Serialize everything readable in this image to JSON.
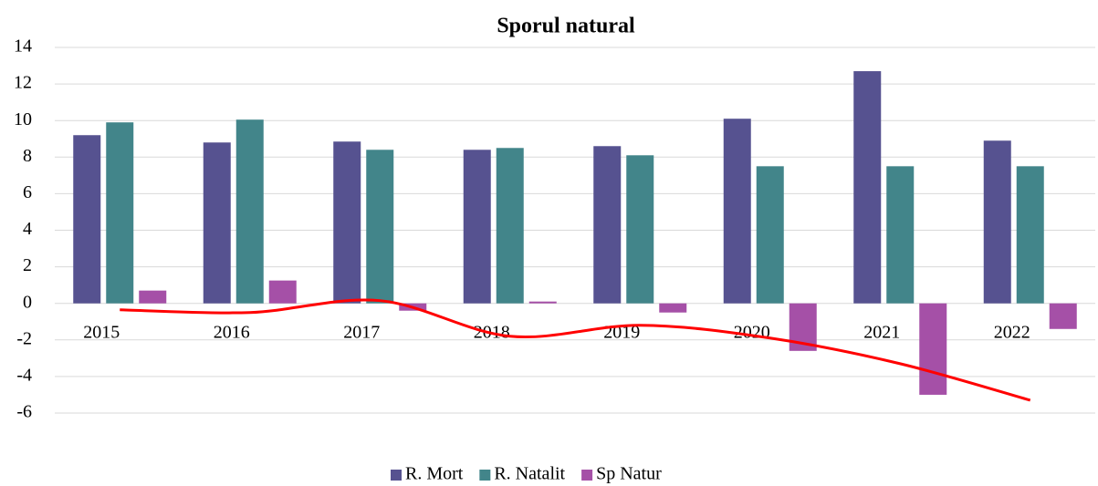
{
  "chart_data": {
    "type": "bar",
    "title": "Sporul natural",
    "categories": [
      "2015",
      "2016",
      "2017",
      "2018",
      "2019",
      "2020",
      "2021",
      "2022"
    ],
    "series": [
      {
        "name": "R. Mort",
        "color": "#565290",
        "values": [
          9.2,
          8.8,
          8.85,
          8.4,
          8.6,
          10.1,
          12.7,
          8.9
        ]
      },
      {
        "name": "R. Natalit",
        "color": "#42858a",
        "values": [
          9.9,
          10.05,
          8.4,
          8.5,
          8.1,
          7.5,
          7.5,
          7.5
        ]
      },
      {
        "name": "Sp Natur",
        "color": "#a550a7",
        "values": [
          0.7,
          1.25,
          -0.4,
          0.1,
          -0.5,
          -2.6,
          -5.0,
          -1.4
        ]
      }
    ],
    "trend": {
      "color": "#ff0000",
      "values": [
        -0.35,
        -0.5,
        0.15,
        -1.8,
        -1.2,
        -1.9,
        -3.3,
        -5.3
      ]
    },
    "ylim": [
      -6,
      14
    ],
    "yticks": [
      -6,
      -4,
      -2,
      0,
      2,
      4,
      6,
      8,
      10,
      12,
      14
    ],
    "grid": true,
    "legend": "bottom"
  }
}
